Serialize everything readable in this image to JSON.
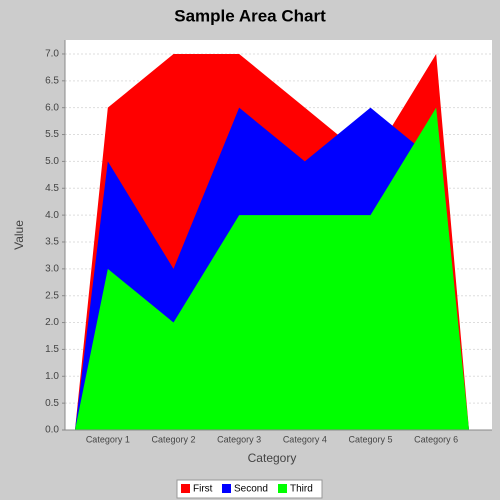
{
  "chart_data": {
    "type": "area",
    "title": "Sample Area Chart",
    "x_label": "Category",
    "y_label": "Value",
    "categories": [
      "Category 1",
      "Category 2",
      "Category 3",
      "Category 4",
      "Category 5",
      "Category 6"
    ],
    "series": [
      {
        "name": "First",
        "color": "#ff0000",
        "values": [
          6,
          7,
          7,
          6,
          5,
          7
        ]
      },
      {
        "name": "Second",
        "color": "#0000ff",
        "values": [
          5,
          3,
          6,
          5,
          6,
          5
        ]
      },
      {
        "name": "Third",
        "color": "#00ff00",
        "values": [
          3,
          2,
          4,
          4,
          4,
          6
        ]
      }
    ],
    "ylim": [
      0,
      7.26
    ],
    "yticks": [
      {
        "value": 0,
        "label": "0.0"
      },
      {
        "value": 0.5,
        "label": "0.5"
      },
      {
        "value": 1,
        "label": "1.0"
      },
      {
        "value": 1.5,
        "label": "1.5"
      },
      {
        "value": 2,
        "label": "2.0"
      },
      {
        "value": 2.5,
        "label": "2.5"
      },
      {
        "value": 3,
        "label": "3.0"
      },
      {
        "value": 3.5,
        "label": "3.5"
      },
      {
        "value": 4,
        "label": "4.0"
      },
      {
        "value": 4.5,
        "label": "4.5"
      },
      {
        "value": 5,
        "label": "5.0"
      },
      {
        "value": 5.5,
        "label": "5.5"
      },
      {
        "value": 6,
        "label": "6.0"
      },
      {
        "value": 6.5,
        "label": "6.5"
      },
      {
        "value": 7,
        "label": "7.0"
      }
    ],
    "grid": true,
    "legend": "bottom"
  }
}
